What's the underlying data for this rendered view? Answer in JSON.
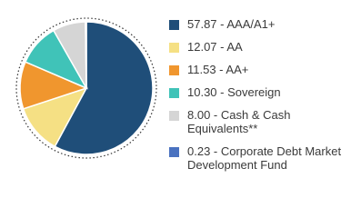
{
  "chart_data": {
    "type": "pie",
    "categories": [
      "57.87 - AAA/A1+",
      "12.07 - AA",
      "11.53 - AA+",
      "10.30 - Sovereign",
      "8.00 - Cash & Cash Equivalents**",
      "0.23 - Corporate Debt Market Development Fund"
    ],
    "values": [
      57.87,
      12.07,
      11.53,
      10.3,
      8.0,
      0.23
    ],
    "colors": [
      "#1f4e79",
      "#f5e084",
      "#f0962e",
      "#40c3b8",
      "#d5d5d5",
      "#4a72c0"
    ]
  }
}
